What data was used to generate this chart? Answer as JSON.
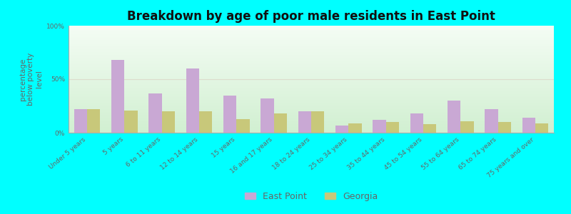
{
  "title": "Breakdown by age of poor male residents in East Point",
  "ylabel": "percentage\nbelow poverty\nlevel",
  "categories": [
    "Under 5 years",
    "5 years",
    "6 to 11 years",
    "12 to 14 years",
    "15 years",
    "16 and 17 years",
    "18 to 24 years",
    "25 to 34 years",
    "35 to 44 years",
    "45 to 54 years",
    "55 to 64 years",
    "65 to 74 years",
    "75 years and over"
  ],
  "east_point": [
    22,
    68,
    37,
    60,
    35,
    32,
    20,
    7,
    12,
    18,
    30,
    22,
    14
  ],
  "georgia": [
    22,
    21,
    20,
    20,
    13,
    18,
    20,
    9,
    10,
    8,
    11,
    10,
    9
  ],
  "bar_color_ep": "#c9a8d4",
  "bar_color_ga": "#c8c87a",
  "outer_bg": "#00ffff",
  "title_color": "#111111",
  "label_color": "#666666",
  "bar_width": 0.35,
  "ylim": [
    0,
    100
  ],
  "yticks": [
    0,
    50,
    100
  ],
  "ytick_labels": [
    "0%",
    "50%",
    "100%"
  ],
  "title_fontsize": 12,
  "axis_label_fontsize": 7.5,
  "tick_label_fontsize": 6.5,
  "legend_fontsize": 9
}
